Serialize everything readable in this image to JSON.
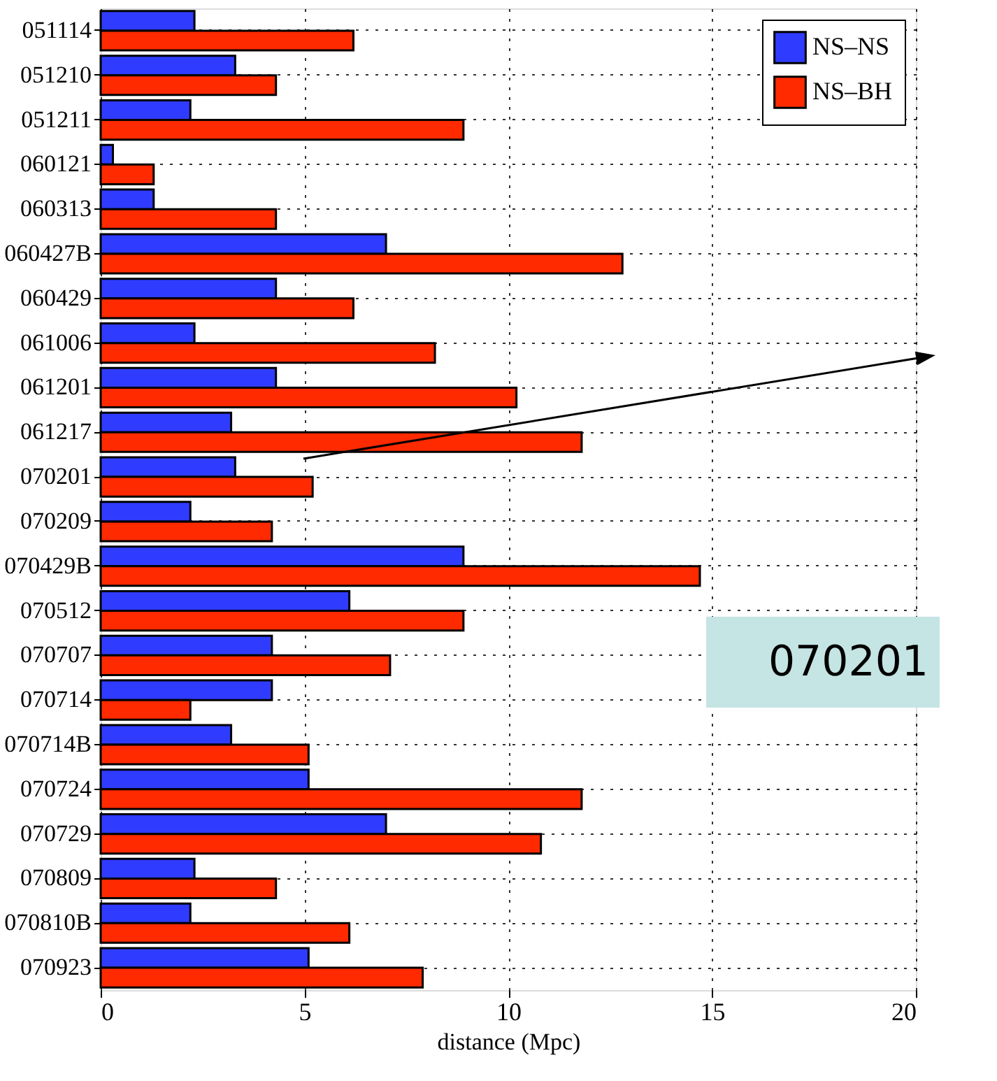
{
  "chart_data": {
    "type": "bar",
    "orientation": "horizontal",
    "xlabel": "distance (Mpc)",
    "categories": [
      "051114",
      "051210",
      "051211",
      "060121",
      "060313",
      "060427B",
      "060429",
      "061006",
      "061201",
      "061217",
      "070201",
      "070209",
      "070429B",
      "070512",
      "070707",
      "070714",
      "070714B",
      "070724",
      "070729",
      "070809",
      "070810B",
      "070923"
    ],
    "series": [
      {
        "name": "NS–NS",
        "color": "#2f3cff",
        "values": [
          2.3,
          3.3,
          2.2,
          0.3,
          1.3,
          7.0,
          4.3,
          2.3,
          4.3,
          3.2,
          3.3,
          2.2,
          8.9,
          6.1,
          4.2,
          4.2,
          3.2,
          5.1,
          7.0,
          2.3,
          2.2,
          5.1
        ]
      },
      {
        "name": "NS–BH",
        "color": "#ff2a00",
        "values": [
          6.2,
          4.3,
          8.9,
          1.3,
          4.3,
          12.8,
          6.2,
          8.2,
          10.2,
          11.8,
          5.2,
          4.2,
          14.7,
          8.9,
          7.1,
          2.2,
          5.1,
          11.8,
          10.8,
          4.3,
          6.1,
          7.9
        ]
      }
    ],
    "xlim": [
      0,
      20
    ],
    "xticks": [
      0,
      5,
      10,
      15,
      20
    ],
    "grid": true,
    "legend": "top right",
    "annotations": [
      "070201"
    ]
  }
}
